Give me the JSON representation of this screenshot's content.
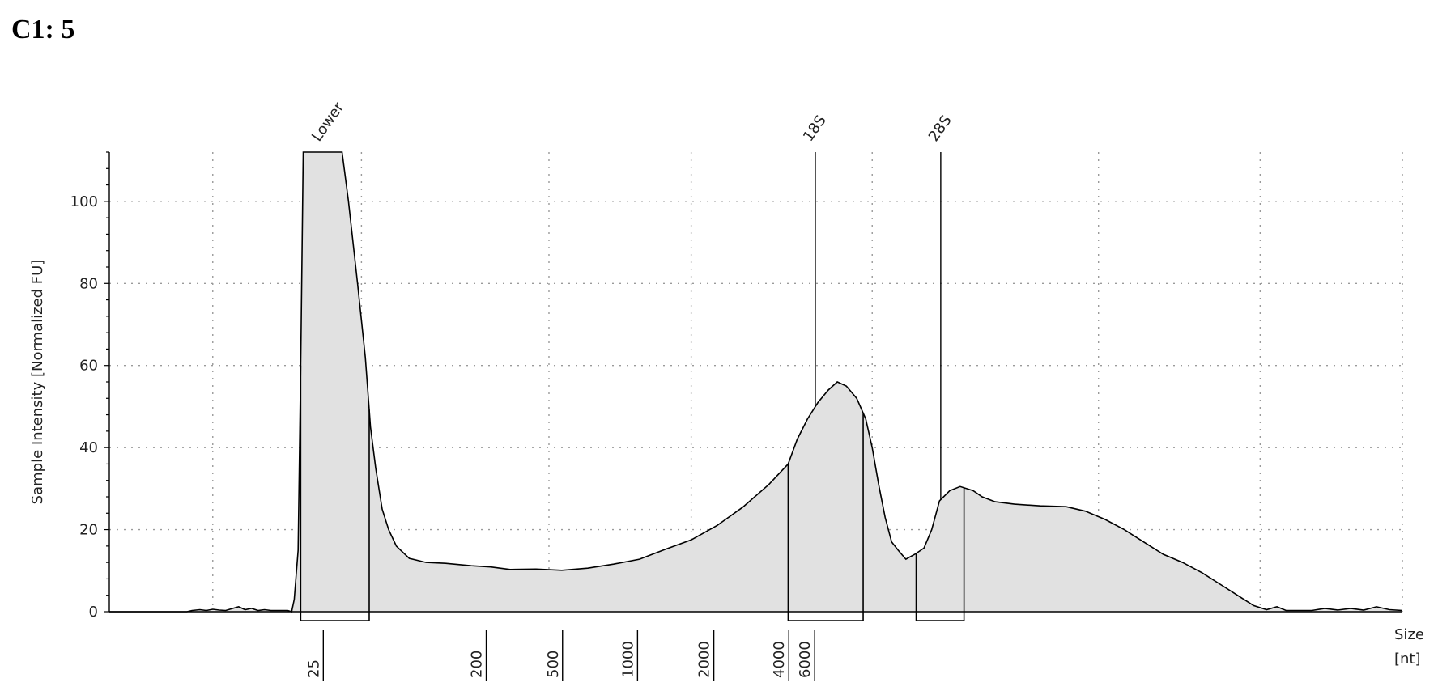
{
  "title": "C1: 5",
  "chart_data": {
    "type": "area",
    "ylabel": "Sample Intensity [Normalized FU]",
    "xlabel_line1": "Size",
    "xlabel_line2": "[nt]",
    "ylim": [
      0,
      112
    ],
    "y_ticks": [
      "0",
      "20",
      "40",
      "60",
      "80",
      "100"
    ],
    "x_size_ticks": [
      "25",
      "200",
      "500",
      "1000",
      "2000",
      "4000",
      "6000"
    ],
    "grid": true,
    "fill_color": "#e1e1e1",
    "line_color": "#000000",
    "x_domain": [
      0,
      100
    ],
    "peaks": [
      {
        "label": "Lower",
        "x": 16.6
      },
      {
        "label": "18S",
        "x": 54.6
      },
      {
        "label": "28S",
        "x": 64.3
      }
    ],
    "regions": [
      [
        14.8,
        20.1
      ],
      [
        52.5,
        58.3
      ],
      [
        62.4,
        66.1
      ]
    ],
    "trace": [
      [
        0,
        0
      ],
      [
        6,
        0
      ],
      [
        6.4,
        0.3
      ],
      [
        7,
        0.5
      ],
      [
        7.5,
        0.3
      ],
      [
        8,
        0.6
      ],
      [
        8.5,
        0.4
      ],
      [
        9,
        0.3
      ],
      [
        10,
        1.2
      ],
      [
        10.5,
        0.5
      ],
      [
        11,
        0.8
      ],
      [
        11.5,
        0.3
      ],
      [
        12,
        0.5
      ],
      [
        12.5,
        0.3
      ],
      [
        13.8,
        0.3
      ],
      [
        14.1,
        0
      ],
      [
        14.3,
        3
      ],
      [
        14.6,
        15
      ],
      [
        14.8,
        60
      ],
      [
        15.0,
        112
      ],
      [
        18.0,
        112
      ],
      [
        18.5,
        100
      ],
      [
        19.2,
        80
      ],
      [
        19.8,
        62
      ],
      [
        20.2,
        45
      ],
      [
        20.6,
        35
      ],
      [
        21.1,
        25
      ],
      [
        21.6,
        20
      ],
      [
        22.2,
        16
      ],
      [
        23.2,
        13
      ],
      [
        24.5,
        12
      ],
      [
        26,
        11.8
      ],
      [
        28,
        11.2
      ],
      [
        29.5,
        10.9
      ],
      [
        31,
        10.3
      ],
      [
        33,
        10.4
      ],
      [
        35,
        10.1
      ],
      [
        37,
        10.6
      ],
      [
        39,
        11.6
      ],
      [
        41,
        12.8
      ],
      [
        43,
        15.2
      ],
      [
        45,
        17.5
      ],
      [
        47,
        21
      ],
      [
        49,
        25.5
      ],
      [
        51,
        31
      ],
      [
        52.5,
        36
      ],
      [
        53.2,
        42
      ],
      [
        54.0,
        47
      ],
      [
        54.8,
        51
      ],
      [
        55.6,
        54
      ],
      [
        56.3,
        56
      ],
      [
        57.0,
        55
      ],
      [
        57.8,
        52
      ],
      [
        58.5,
        47
      ],
      [
        59.0,
        40
      ],
      [
        59.5,
        31
      ],
      [
        60.0,
        23
      ],
      [
        60.5,
        17
      ],
      [
        61.0,
        15
      ],
      [
        61.6,
        12.8
      ],
      [
        62.3,
        14
      ],
      [
        63.0,
        15.5
      ],
      [
        63.6,
        20
      ],
      [
        64.2,
        27
      ],
      [
        65.0,
        29.5
      ],
      [
        65.8,
        30.5
      ],
      [
        66.8,
        29.5
      ],
      [
        67.5,
        28
      ],
      [
        68.5,
        26.8
      ],
      [
        70,
        26.2
      ],
      [
        72,
        25.8
      ],
      [
        74,
        25.6
      ],
      [
        75.5,
        24.5
      ],
      [
        77,
        22.5
      ],
      [
        78.5,
        20
      ],
      [
        80,
        17
      ],
      [
        81.5,
        14
      ],
      [
        83,
        12
      ],
      [
        84.5,
        9.5
      ],
      [
        86,
        6.5
      ],
      [
        87.5,
        3.5
      ],
      [
        88.5,
        1.5
      ],
      [
        89.5,
        0.5
      ],
      [
        90.3,
        1.2
      ],
      [
        91,
        0.3
      ],
      [
        93,
        0.3
      ],
      [
        94,
        0.8
      ],
      [
        95,
        0.4
      ],
      [
        96,
        0.8
      ],
      [
        97,
        0.4
      ],
      [
        98,
        1.2
      ],
      [
        99,
        0.5
      ],
      [
        100,
        0.3
      ]
    ]
  }
}
